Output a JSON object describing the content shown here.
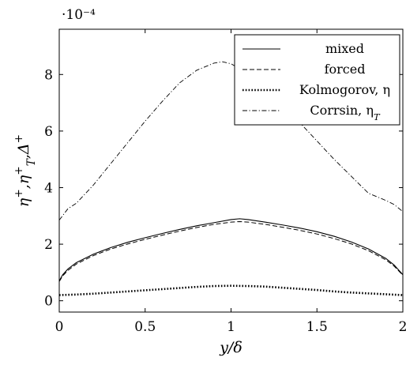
{
  "chart_data": {
    "type": "line",
    "xlabel": "y/δ",
    "ylabel": "η⁺,η⁺_T,Δ⁺",
    "y_multiplier": "·10⁻⁴",
    "xlim": [
      0,
      2
    ],
    "ylim": [
      -0.4,
      9.6
    ],
    "x_ticks": [
      "0",
      "0.5",
      "1",
      "1.5",
      "2"
    ],
    "x_tick_values": [
      0,
      0.5,
      1,
      1.5,
      2
    ],
    "y_ticks": [
      "0",
      "2",
      "4",
      "6",
      "8"
    ],
    "y_tick_values": [
      0,
      2,
      4,
      6,
      8
    ],
    "grid": false,
    "legend_position": "top-right",
    "series": [
      {
        "name": "mixed",
        "style": "solid",
        "x": [
          0,
          0.02,
          0.05,
          0.1,
          0.2,
          0.3,
          0.4,
          0.5,
          0.6,
          0.7,
          0.8,
          0.9,
          1.0,
          1.05,
          1.1,
          1.2,
          1.3,
          1.4,
          1.5,
          1.6,
          1.7,
          1.8,
          1.9,
          1.95,
          2.0
        ],
        "y": [
          0.7,
          0.92,
          1.12,
          1.35,
          1.65,
          1.88,
          2.07,
          2.23,
          2.38,
          2.52,
          2.65,
          2.76,
          2.87,
          2.9,
          2.87,
          2.78,
          2.68,
          2.57,
          2.44,
          2.28,
          2.08,
          1.83,
          1.5,
          1.26,
          0.92
        ]
      },
      {
        "name": "forced",
        "style": "dashed",
        "x": [
          0,
          0.02,
          0.05,
          0.1,
          0.2,
          0.3,
          0.4,
          0.5,
          0.6,
          0.7,
          0.8,
          0.9,
          1.0,
          1.05,
          1.1,
          1.2,
          1.3,
          1.4,
          1.5,
          1.6,
          1.7,
          1.8,
          1.9,
          1.95,
          2.0
        ],
        "y": [
          0.68,
          0.88,
          1.07,
          1.3,
          1.6,
          1.83,
          2.01,
          2.17,
          2.32,
          2.46,
          2.59,
          2.7,
          2.78,
          2.8,
          2.78,
          2.7,
          2.6,
          2.49,
          2.36,
          2.2,
          2.01,
          1.77,
          1.45,
          1.22,
          0.9
        ]
      },
      {
        "name": "Kolmogorov, η",
        "style": "dotted",
        "x": [
          0,
          0.1,
          0.2,
          0.3,
          0.4,
          0.5,
          0.6,
          0.7,
          0.8,
          0.9,
          1.0,
          1.1,
          1.2,
          1.3,
          1.4,
          1.5,
          1.6,
          1.7,
          1.8,
          1.9,
          2.0
        ],
        "y": [
          0.2,
          0.22,
          0.25,
          0.29,
          0.33,
          0.37,
          0.41,
          0.45,
          0.49,
          0.52,
          0.53,
          0.52,
          0.5,
          0.46,
          0.42,
          0.38,
          0.33,
          0.29,
          0.26,
          0.23,
          0.2
        ]
      },
      {
        "name": "Corrsin, η_T",
        "style": "dashdot",
        "x": [
          0,
          0.05,
          0.1,
          0.2,
          0.3,
          0.4,
          0.5,
          0.6,
          0.7,
          0.8,
          0.9,
          0.95,
          1.0,
          1.05,
          1.1,
          1.2,
          1.3,
          1.4,
          1.5,
          1.6,
          1.7,
          1.8,
          1.9,
          1.95,
          2.0
        ],
        "y": [
          2.85,
          3.25,
          3.45,
          4.1,
          4.85,
          5.6,
          6.35,
          7.05,
          7.7,
          8.15,
          8.4,
          8.45,
          8.38,
          8.2,
          7.95,
          7.45,
          6.9,
          6.3,
          5.65,
          5.0,
          4.4,
          3.8,
          3.55,
          3.4,
          3.15
        ]
      }
    ]
  }
}
